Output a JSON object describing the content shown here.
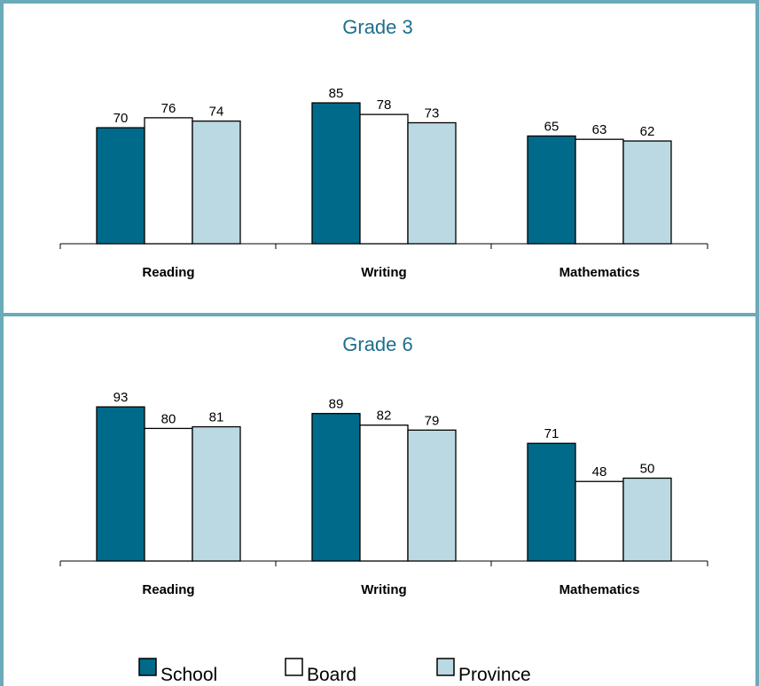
{
  "chart_data": [
    {
      "type": "bar",
      "title": "Grade 3",
      "categories": [
        "Reading",
        "Writing",
        "Mathematics"
      ],
      "series": [
        {
          "name": "School",
          "values": [
            70,
            85,
            65
          ]
        },
        {
          "name": "Board",
          "values": [
            76,
            78,
            63
          ]
        },
        {
          "name": "Province",
          "values": [
            74,
            73,
            62
          ]
        }
      ],
      "ylim": [
        0,
        100
      ],
      "grid": false,
      "legend": "bottom"
    },
    {
      "type": "bar",
      "title": "Grade 6",
      "categories": [
        "Reading",
        "Writing",
        "Mathematics"
      ],
      "series": [
        {
          "name": "School",
          "values": [
            93,
            89,
            71
          ]
        },
        {
          "name": "Board",
          "values": [
            80,
            82,
            48
          ]
        },
        {
          "name": "Province",
          "values": [
            81,
            79,
            50
          ]
        }
      ],
      "ylim": [
        0,
        100
      ],
      "grid": false,
      "legend": "bottom"
    }
  ],
  "legend": [
    {
      "label": "School",
      "color": "#006a8a"
    },
    {
      "label": "Board",
      "color": "#ffffff"
    },
    {
      "label": "Province",
      "color": "#bad9e2"
    }
  ],
  "colors": {
    "frame": "#6aaab9",
    "title": "#1e6e90"
  }
}
